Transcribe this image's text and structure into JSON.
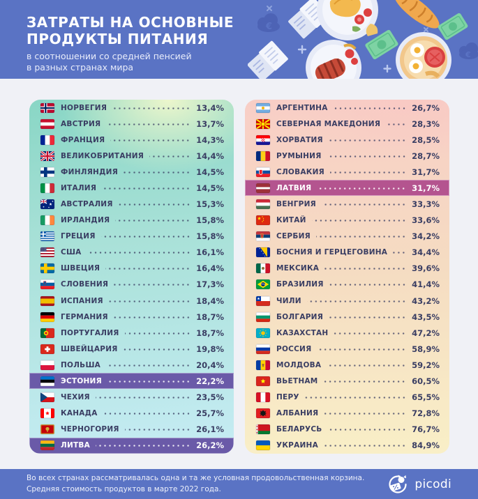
{
  "header": {
    "title_line1": "ЗАТРАТЫ НА ОСНОВНЫЕ",
    "title_line2": "ПРОДУКТЫ ПИТАНИЯ",
    "subtitle_line1": "в соотношении со средней пенсией",
    "subtitle_line2": "в разных странах мира",
    "euro_symbol": "€"
  },
  "footer": {
    "note_line1": "Во всех странах рассматривалась одна и та же условная продовольственная корзина.",
    "note_line2": "Средняя стоимость продуктов в марте 2022 года.",
    "brand": "picodi"
  },
  "colors": {
    "header_bg": "#5a73c4",
    "page_bg": "#f0f1f6",
    "text": "#3a3e63",
    "highlight_purple": "#6a5aa8",
    "highlight_magenta": "#b4548f"
  },
  "chart_data": {
    "type": "table",
    "title": "Затраты на основные продукты питания в соотношении со средней пенсией в разных странах мира",
    "unit": "%",
    "legend_note": "Подсвеченные строки: Эстония и Литва (фиолетовый), Латвия (пурпурный)",
    "columns": [
      {
        "panel": "left",
        "rows": [
          {
            "country": "НОРВЕГИЯ",
            "flag": "norway",
            "value": 13.4,
            "display": "13,4%",
            "highlight": null
          },
          {
            "country": "АВСТРИЯ",
            "flag": "austria",
            "value": 13.7,
            "display": "13,7%",
            "highlight": null
          },
          {
            "country": "ФРАНЦИЯ",
            "flag": "france",
            "value": 14.3,
            "display": "14,3%",
            "highlight": null
          },
          {
            "country": "ВЕЛИКОБРИТАНИЯ",
            "flag": "uk",
            "value": 14.4,
            "display": "14,4%",
            "highlight": null
          },
          {
            "country": "ФИНЛЯНДИЯ",
            "flag": "finland",
            "value": 14.5,
            "display": "14,5%",
            "highlight": null
          },
          {
            "country": "ИТАЛИЯ",
            "flag": "italy",
            "value": 14.5,
            "display": "14,5%",
            "highlight": null
          },
          {
            "country": "АВСТРАЛИЯ",
            "flag": "australia",
            "value": 15.3,
            "display": "15,3%",
            "highlight": null
          },
          {
            "country": "ИРЛАНДИЯ",
            "flag": "ireland",
            "value": 15.8,
            "display": "15,8%",
            "highlight": null
          },
          {
            "country": "ГРЕЦИЯ",
            "flag": "greece",
            "value": 15.8,
            "display": "15,8%",
            "highlight": null
          },
          {
            "country": "США",
            "flag": "usa",
            "value": 16.1,
            "display": "16,1%",
            "highlight": null
          },
          {
            "country": "ШВЕЦИЯ",
            "flag": "sweden",
            "value": 16.4,
            "display": "16,4%",
            "highlight": null
          },
          {
            "country": "СЛОВЕНИЯ",
            "flag": "slovenia",
            "value": 17.3,
            "display": "17,3%",
            "highlight": null
          },
          {
            "country": "ИСПАНИЯ",
            "flag": "spain",
            "value": 18.4,
            "display": "18,4%",
            "highlight": null
          },
          {
            "country": "ГЕРМАНИЯ",
            "flag": "germany",
            "value": 18.7,
            "display": "18,7%",
            "highlight": null
          },
          {
            "country": "ПОРТУГАЛИЯ",
            "flag": "portugal",
            "value": 18.7,
            "display": "18,7%",
            "highlight": null
          },
          {
            "country": "ШВЕЙЦАРИЯ",
            "flag": "switzerland",
            "value": 19.8,
            "display": "19,8%",
            "highlight": null
          },
          {
            "country": "ПОЛЬША",
            "flag": "poland",
            "value": 20.4,
            "display": "20,4%",
            "highlight": null
          },
          {
            "country": "ЭСТОНИЯ",
            "flag": "estonia",
            "value": 22.2,
            "display": "22,2%",
            "highlight": "purple"
          },
          {
            "country": "ЧЕХИЯ",
            "flag": "czechia",
            "value": 23.5,
            "display": "23,5%",
            "highlight": null
          },
          {
            "country": "КАНАДА",
            "flag": "canada",
            "value": 25.7,
            "display": "25,7%",
            "highlight": null
          },
          {
            "country": "ЧЕРНОГОРИЯ",
            "flag": "montenegro",
            "value": 26.1,
            "display": "26,1%",
            "highlight": null
          },
          {
            "country": "ЛИТВА",
            "flag": "lithuania",
            "value": 26.2,
            "display": "26,2%",
            "highlight": "purple"
          }
        ]
      },
      {
        "panel": "right",
        "rows": [
          {
            "country": "АРГЕНТИНА",
            "flag": "argentina",
            "value": 26.7,
            "display": "26,7%",
            "highlight": null
          },
          {
            "country": "СЕВЕРНАЯ МАКЕДОНИЯ",
            "flag": "north-macedonia",
            "value": 28.3,
            "display": "28,3%",
            "highlight": null
          },
          {
            "country": "ХОРВАТИЯ",
            "flag": "croatia",
            "value": 28.5,
            "display": "28,5%",
            "highlight": null
          },
          {
            "country": "РУМЫНИЯ",
            "flag": "romania",
            "value": 28.7,
            "display": "28,7%",
            "highlight": null
          },
          {
            "country": "СЛОВАКИЯ",
            "flag": "slovakia",
            "value": 31.7,
            "display": "31,7%",
            "highlight": null
          },
          {
            "country": "ЛАТВИЯ",
            "flag": "latvia",
            "value": 31.7,
            "display": "31,7%",
            "highlight": "magenta"
          },
          {
            "country": "ВЕНГРИЯ",
            "flag": "hungary",
            "value": 33.3,
            "display": "33,3%",
            "highlight": null
          },
          {
            "country": "КИТАЙ",
            "flag": "china",
            "value": 33.6,
            "display": "33,6%",
            "highlight": null
          },
          {
            "country": "СЕРБИЯ",
            "flag": "serbia",
            "value": 34.2,
            "display": "34,2%",
            "highlight": null
          },
          {
            "country": "БОСНИЯ И ГЕРЦЕГОВИНА",
            "flag": "bosnia",
            "value": 34.4,
            "display": "34,4%",
            "highlight": null
          },
          {
            "country": "МЕКСИКА",
            "flag": "mexico",
            "value": 39.6,
            "display": "39,6%",
            "highlight": null
          },
          {
            "country": "БРАЗИЛИЯ",
            "flag": "brazil",
            "value": 41.4,
            "display": "41,4%",
            "highlight": null
          },
          {
            "country": "ЧИЛИ",
            "flag": "chile",
            "value": 43.2,
            "display": "43,2%",
            "highlight": null
          },
          {
            "country": "БОЛГАРИЯ",
            "flag": "bulgaria",
            "value": 43.5,
            "display": "43,5%",
            "highlight": null
          },
          {
            "country": "КАЗАХСТАН",
            "flag": "kazakhstan",
            "value": 47.2,
            "display": "47,2%",
            "highlight": null
          },
          {
            "country": "РОССИЯ",
            "flag": "russia",
            "value": 58.9,
            "display": "58,9%",
            "highlight": null
          },
          {
            "country": "МОЛДОВА",
            "flag": "moldova",
            "value": 59.2,
            "display": "59,2%",
            "highlight": null
          },
          {
            "country": "ВЬЕТНАМ",
            "flag": "vietnam",
            "value": 60.5,
            "display": "60,5%",
            "highlight": null
          },
          {
            "country": "ПЕРУ",
            "flag": "peru",
            "value": 65.5,
            "display": "65,5%",
            "highlight": null
          },
          {
            "country": "АЛБАНИЯ",
            "flag": "albania",
            "value": 72.8,
            "display": "72,8%",
            "highlight": null
          },
          {
            "country": "БЕЛАРУСЬ",
            "flag": "belarus",
            "value": 76.7,
            "display": "76,7%",
            "highlight": null
          },
          {
            "country": "УКРАИНА",
            "flag": "ukraine",
            "value": 84.9,
            "display": "84,9%",
            "highlight": null
          }
        ]
      }
    ]
  }
}
